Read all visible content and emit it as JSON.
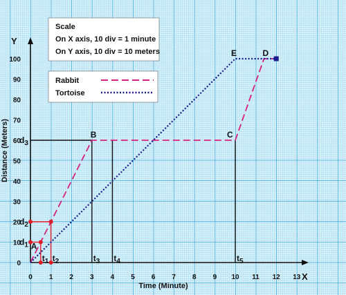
{
  "chart_data": {
    "type": "line",
    "xlabel": "Time (Minute)",
    "ylabel": "Distance (Meters)",
    "x_axis_letter": "X",
    "y_axis_letter": "Y",
    "xlim": [
      0,
      13
    ],
    "ylim": [
      0,
      100
    ],
    "x_ticks": [
      0,
      1,
      2,
      3,
      4,
      5,
      6,
      7,
      8,
      9,
      10,
      11,
      12,
      13
    ],
    "y_ticks": [
      0,
      10,
      20,
      30,
      40,
      50,
      60,
      70,
      80,
      90,
      100
    ],
    "grid": true,
    "colors": {
      "grid_fine": "#9ad6ee",
      "grid_major": "#3aa7d8",
      "background": "#d9f1fa",
      "rabbit": "#d6217f",
      "tortoise": "#1a1a8c",
      "marker": "#e01b24",
      "end_marker": "#1a1a8c"
    },
    "scale_box": {
      "title": "Scale",
      "line1": "On X axis,  10 div = 1 minute",
      "line2": "On Y axis,  10 div = 10 meters"
    },
    "legend": {
      "placement": "top-left",
      "items": [
        {
          "label": "Rabbit"
        },
        {
          "label": "Tortoise"
        }
      ]
    },
    "series": [
      {
        "name": "Rabbit",
        "x": [
          0,
          3,
          10,
          11.4,
          12
        ],
        "y": [
          0,
          60,
          60,
          100,
          100
        ]
      },
      {
        "name": "Tortoise",
        "x": [
          0,
          10,
          12
        ],
        "y": [
          0,
          100,
          100
        ]
      }
    ],
    "points": [
      {
        "label": "A",
        "x": 0.5,
        "y": 10
      },
      {
        "label": "B",
        "x": 3,
        "y": 60
      },
      {
        "label": "C",
        "x": 10,
        "y": 60
      },
      {
        "label": "D",
        "x": 11.4,
        "y": 100
      },
      {
        "label": "E",
        "x": 10,
        "y": 100
      }
    ],
    "markers": [
      {
        "x": 0,
        "y": 10
      },
      {
        "x": 0.5,
        "y": 10
      },
      {
        "x": 0,
        "y": 20
      },
      {
        "x": 1,
        "y": 20
      },
      {
        "x": 0.5,
        "y": 0
      },
      {
        "x": 1,
        "y": 0
      }
    ],
    "end_marker": {
      "x": 12,
      "y": 100
    },
    "y_annotations": [
      {
        "label": "d",
        "sub": "1",
        "y": 10,
        "to_x": 0.5
      },
      {
        "label": "d",
        "sub": "2",
        "y": 20,
        "to_x": 1
      },
      {
        "label": "d",
        "sub": "3",
        "y": 60,
        "to_x": 3
      }
    ],
    "x_annotations": [
      {
        "label": "t",
        "sub": "1",
        "x": 0.5,
        "to_y": 10
      },
      {
        "label": "t",
        "sub": "2",
        "x": 1,
        "to_y": 20
      },
      {
        "label": "t",
        "sub": "3",
        "x": 3,
        "to_y": 60
      },
      {
        "label": "t",
        "sub": "4",
        "x": 4,
        "to_y": 60
      },
      {
        "label": "t",
        "sub": "5",
        "x": 10,
        "to_y": 60
      }
    ]
  }
}
